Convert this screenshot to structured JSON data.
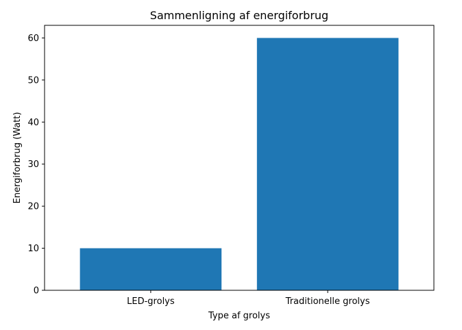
{
  "chart_data": {
    "type": "bar",
    "title": "Sammenligning af energiforbrug",
    "xlabel": "Type af grolys",
    "ylabel": "Energiforbrug (Watt)",
    "categories": [
      "LED-grolys",
      "Traditionelle grolys"
    ],
    "values": [
      10,
      60
    ],
    "ylim": [
      0,
      63
    ],
    "yticks": [
      0,
      10,
      20,
      30,
      40,
      50,
      60
    ],
    "bar_color": "#1f77b4",
    "grid": false,
    "legend": "none"
  }
}
